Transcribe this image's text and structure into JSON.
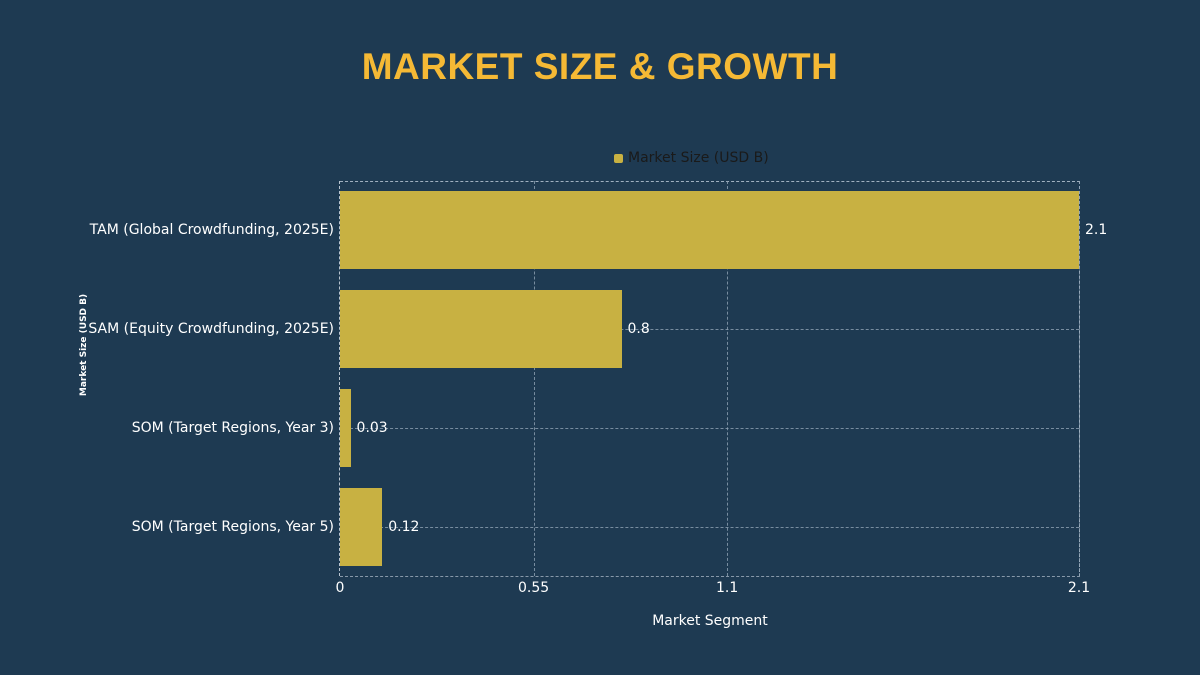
{
  "title": "MARKET SIZE & GROWTH",
  "colors": {
    "background": "#1e3a52",
    "title": "#f5b935",
    "bar": "#c8b142",
    "text": "#ffffff"
  },
  "legend": {
    "label": "Market Size (USD B)"
  },
  "chart_data": {
    "type": "bar",
    "orientation": "horizontal",
    "title": "MARKET SIZE & GROWTH",
    "categories": [
      "TAM (Global Crowdfunding, 2025E)",
      "SAM (Equity Crowdfunding, 2025E)",
      "SOM (Target Regions, Year 3)",
      "SOM (Target Regions, Year 5)"
    ],
    "series": [
      {
        "name": "Market Size (USD B)",
        "values": [
          2.1,
          0.8,
          0.03,
          0.12
        ]
      }
    ],
    "xlabel": "Market Segment",
    "ylabel": "Market Size (USD B)",
    "xlim": [
      0,
      2.1
    ],
    "xticks": [
      "0",
      "0.55",
      "1.1",
      "2.1"
    ],
    "grid": true,
    "legend_position": "top"
  }
}
